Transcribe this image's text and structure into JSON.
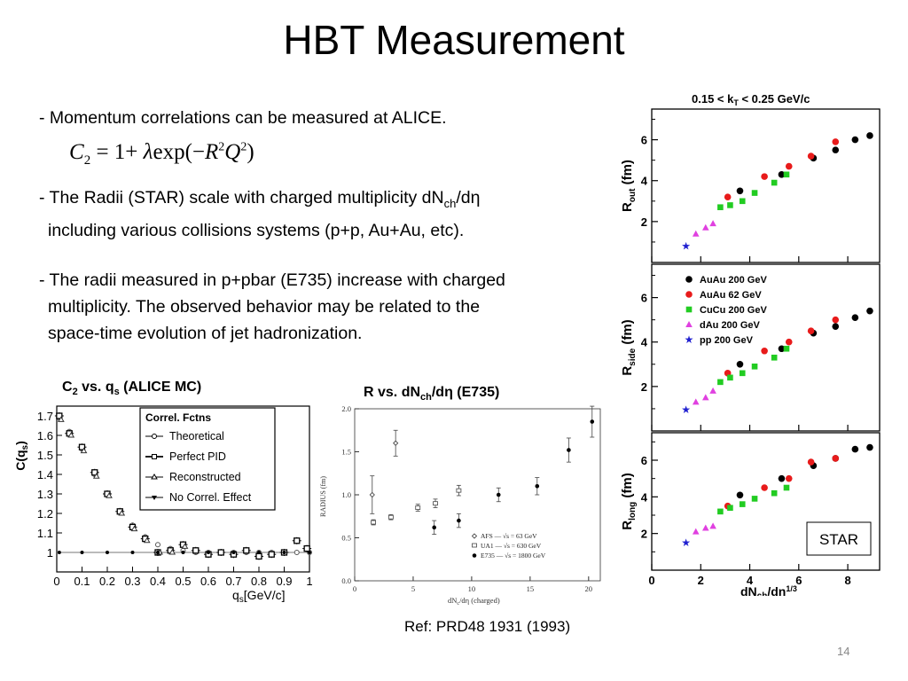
{
  "slide": {
    "title": "HBT Measurement",
    "bullet1": "- Momentum correlations can be measured at ALICE.",
    "formula": {
      "c": "C",
      "sub2": "2",
      "eq": " = 1+ ",
      "lambda": "λ",
      "exp": "exp(",
      "minus": "−",
      "r": "R",
      "sup2a": "2",
      "q": "Q",
      "sup2b": "2",
      "close": ")"
    },
    "bullet2_part1": "- The Radii (STAR) scale with charged multiplicity dN",
    "bullet2_sub": "ch",
    "bullet2_part2": "/dη",
    "bullet2_line2": "including various collisions systems (p+p, Au+Au, etc).",
    "bullet3_line1": "- The radii measured in p+pbar (E735) increase with charged",
    "bullet3_line2": "multiplicity. The observed behavior may be related to the",
    "bullet3_line3": "space-time evolution of jet hadronization.",
    "fig1_title": {
      "pre": "C",
      "sub1": "2",
      "mid": " vs. q",
      "sub2": "s",
      "post": " (ALICE MC)"
    },
    "fig2_title": {
      "pre": "R vs. dN",
      "sub": "ch",
      "post": "/dη (E735)"
    },
    "ref": "Ref: PRD48 1931 (1993)",
    "page_number": "14"
  },
  "chart_data": [
    {
      "type": "scatter",
      "name": "alice_mc",
      "ylabel": "C(q",
      "ylabel_sub": "s",
      "ylabel_post": ")",
      "xlabel": "q",
      "xlabel_sub": "s",
      "xlabel_post": "[GeV/c]",
      "xlim": [
        0,
        1
      ],
      "ylim": [
        0.9,
        1.75
      ],
      "xticks": [
        "0",
        "0.1",
        "0.2",
        "0.3",
        "0.4",
        "0.5",
        "0.6",
        "0.7",
        "0.8",
        "0.9",
        "1"
      ],
      "yticks": [
        "1",
        "1.1",
        "1.2",
        "1.3",
        "1.4",
        "1.5",
        "1.6",
        "1.7"
      ],
      "legend_title": "Correl. Fctns",
      "legend_position": "top-right",
      "series": [
        {
          "name": "Theoretical",
          "x": [
            0.01,
            0.05,
            0.1,
            0.15,
            0.2,
            0.25,
            0.3,
            0.35,
            0.4,
            0.45,
            0.5,
            0.55,
            0.6,
            0.65,
            0.7,
            0.75,
            0.8,
            0.85,
            0.9,
            0.95,
            1.0
          ],
          "y": [
            1.69,
            1.62,
            1.53,
            1.4,
            1.3,
            1.21,
            1.14,
            1.08,
            1.04,
            1.02,
            1.01,
            1.0,
            1.0,
            1.0,
            1.0,
            1.0,
            1.0,
            1.0,
            1.0,
            1.0,
            1.0
          ]
        },
        {
          "name": "Perfect PID",
          "x": [
            0.01,
            0.05,
            0.1,
            0.15,
            0.2,
            0.25,
            0.3,
            0.35,
            0.4,
            0.45,
            0.5,
            0.55,
            0.6,
            0.65,
            0.7,
            0.75,
            0.8,
            0.85,
            0.9,
            0.95,
            0.99
          ],
          "y": [
            1.7,
            1.61,
            1.54,
            1.41,
            1.3,
            1.21,
            1.13,
            1.07,
            1.0,
            1.01,
            1.04,
            1.01,
            0.99,
            1.0,
            0.99,
            1.01,
            0.98,
            0.99,
            1.0,
            1.06,
            1.02
          ]
        },
        {
          "name": "Reconstructed",
          "x": [
            0.01,
            0.05,
            0.1,
            0.15,
            0.2,
            0.25,
            0.3,
            0.35,
            0.4,
            0.45,
            0.5
          ],
          "y": [
            1.68,
            1.6,
            1.52,
            1.39,
            1.29,
            1.2,
            1.12,
            1.06,
            1.0,
            1.0,
            1.03
          ]
        },
        {
          "name": "No Correl. Effect",
          "x": [
            0.01,
            0.1,
            0.2,
            0.3,
            0.4,
            0.5,
            0.6,
            0.7,
            0.8,
            0.9,
            1.0
          ],
          "y": [
            1.0,
            1.0,
            1.0,
            1.0,
            1.0,
            1.0,
            1.0,
            1.0,
            1.0,
            1.0,
            1.0
          ]
        }
      ]
    },
    {
      "type": "scatter",
      "name": "e735",
      "ylabel": "RADIUS (fm)",
      "xlabel": "dN",
      "xlabel_sub": "c",
      "xlabel_post": "/dη (charged)",
      "xlim": [
        0,
        21
      ],
      "ylim": [
        0,
        2.0
      ],
      "xticks": [
        "0",
        "5",
        "10",
        "15",
        "20"
      ],
      "yticks": [
        "0.0",
        "0.5",
        "1.0",
        "1.5",
        "2.0"
      ],
      "legend_position": "bottom-right",
      "series": [
        {
          "name": "AFS",
          "legend": "AFS   — √s = 63 GeV",
          "x": [
            1.5,
            3.5
          ],
          "y": [
            1.0,
            1.6
          ],
          "err": [
            0.22,
            0.15
          ]
        },
        {
          "name": "UA1",
          "legend": "UA1   — √s = 630 GeV",
          "x": [
            1.6,
            3.1,
            5.4,
            6.9,
            8.9
          ],
          "y": [
            0.68,
            0.74,
            0.85,
            0.9,
            1.05
          ],
          "err": [
            0.03,
            0.03,
            0.04,
            0.05,
            0.06
          ]
        },
        {
          "name": "E735",
          "legend": "E735  — √s = 1800 GeV",
          "x": [
            6.8,
            8.9,
            12.3,
            15.6,
            18.3,
            20.3
          ],
          "y": [
            0.62,
            0.7,
            1.0,
            1.1,
            1.52,
            1.85
          ],
          "err": [
            0.08,
            0.08,
            0.08,
            0.1,
            0.14,
            0.18
          ]
        }
      ]
    },
    {
      "type": "scatter",
      "name": "star",
      "title": "0.15 < k",
      "title_sub": "T",
      "title_post": " < 0.25 GeV/c",
      "xlabel": "dN",
      "xlabel_sub": "ch",
      "xlabel_post": "/dη",
      "xlabel_sup": "1/3",
      "xlim": [
        0,
        9.3
      ],
      "xticks": [
        "0",
        "2",
        "4",
        "6",
        "8"
      ],
      "panel_labels": [
        {
          "main": "R",
          "sub": "out",
          "unit": "(fm)"
        },
        {
          "main": "R",
          "sub": "side",
          "unit": "(fm)"
        },
        {
          "main": "R",
          "sub": "long",
          "unit": "(fm)"
        }
      ],
      "yticks": [
        "2",
        "4",
        "6"
      ],
      "ylim": [
        0,
        7.5
      ],
      "corner_label": "STAR",
      "legend_position": "top-left (middle panel)",
      "series": [
        {
          "name": "AuAu 200 GeV",
          "color": "#000000",
          "marker": "circle",
          "x": [
            3.6,
            5.3,
            6.6,
            7.5,
            8.3,
            8.9
          ],
          "out": [
            3.5,
            4.3,
            5.1,
            5.5,
            6.0,
            6.2
          ],
          "side": [
            3.0,
            3.7,
            4.4,
            4.7,
            5.1,
            5.4
          ],
          "long": [
            4.1,
            5.0,
            5.7,
            6.1,
            6.6,
            6.7
          ]
        },
        {
          "name": "AuAu 62 GeV",
          "color": "#e81b1b",
          "marker": "circle",
          "x": [
            3.1,
            4.6,
            5.6,
            6.5,
            7.5
          ],
          "out": [
            3.2,
            4.2,
            4.7,
            5.2,
            5.9
          ],
          "side": [
            2.6,
            3.6,
            4.0,
            4.5,
            5.0
          ],
          "long": [
            3.5,
            4.5,
            5.0,
            5.9,
            6.1
          ]
        },
        {
          "name": "CuCu 200 GeV",
          "color": "#22cc22",
          "marker": "square",
          "x": [
            2.8,
            3.2,
            3.7,
            4.2,
            5.0,
            5.5
          ],
          "out": [
            2.7,
            2.8,
            3.0,
            3.4,
            3.9,
            4.3
          ],
          "side": [
            2.2,
            2.4,
            2.6,
            2.9,
            3.3,
            3.7
          ],
          "long": [
            3.2,
            3.4,
            3.6,
            3.9,
            4.2,
            4.5
          ]
        },
        {
          "name": "dAu 200 GeV",
          "color": "#e040e0",
          "marker": "triangle",
          "x": [
            1.8,
            2.2,
            2.5
          ],
          "out": [
            1.4,
            1.7,
            1.9
          ],
          "side": [
            1.3,
            1.5,
            1.8
          ],
          "long": [
            2.1,
            2.3,
            2.4
          ]
        },
        {
          "name": "pp 200 GeV",
          "color": "#2020d0",
          "marker": "star",
          "x": [
            1.4
          ],
          "out": [
            0.8
          ],
          "side": [
            0.95
          ],
          "long": [
            1.5
          ]
        }
      ]
    }
  ]
}
